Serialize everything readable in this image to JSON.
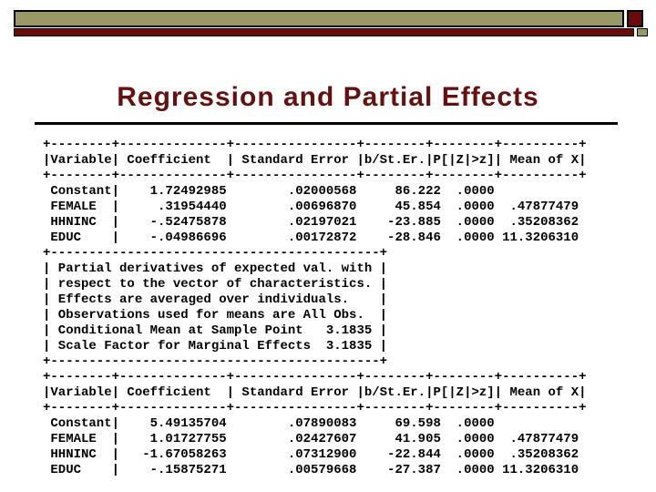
{
  "slide": {
    "title": "Regression and Partial Effects"
  },
  "colors": {
    "banner_tan": "#999966",
    "banner_maroon": "#6b0a0a",
    "title_text": "#641110",
    "body_text": "#000000",
    "background": "#ffffff"
  },
  "tables": [
    {
      "columns": [
        "Variable",
        "Coefficient",
        "Standard Error",
        "b/St.Er.",
        "P[|Z|>z]",
        "Mean of X"
      ],
      "rows": [
        [
          "Constant",
          "1.72492985",
          ".02000568",
          "86.222",
          ".0000",
          ""
        ],
        [
          "FEMALE",
          ".31954440",
          ".00696870",
          "45.854",
          ".0000",
          ".47877479"
        ],
        [
          "HHNINC",
          "-.52475878",
          ".02197021",
          "-23.885",
          ".0000",
          ".35208362"
        ],
        [
          "EDUC",
          "-.04986696",
          ".00172872",
          "-28.846",
          ".0000",
          "11.3206310"
        ]
      ]
    },
    {
      "columns": [
        "Variable",
        "Coefficient",
        "Standard Error",
        "b/St.Er.",
        "P[|Z|>z]",
        "Mean of X"
      ],
      "rows": [
        [
          "Constant",
          "5.49135704",
          ".07890083",
          "69.598",
          ".0000",
          ""
        ],
        [
          "FEMALE",
          "1.01727755",
          ".02427607",
          "41.905",
          ".0000",
          ".47877479"
        ],
        [
          "HHNINC",
          "-1.67058263",
          ".07312900",
          "-22.844",
          ".0000",
          ".35208362"
        ],
        [
          "EDUC",
          "-.15875271",
          ".00579668",
          "-27.387",
          ".0000",
          "11.3206310"
        ]
      ]
    }
  ],
  "notes": [
    "Partial derivatives of expected val. with",
    "respect to the vector of characteristics.",
    "Effects are averaged over individuals.",
    "Observations used for means are All Obs.",
    "Conditional Mean at Sample Point   3.1835",
    "Scale Factor for Marginal Effects  3.1835"
  ],
  "console": {
    "lines": [
      "+--------+--------------+----------------+--------+--------+----------+",
      "|Variable| Coefficient  | Standard Error |b/St.Er.|P[|Z|>z]| Mean of X|",
      "+--------+--------------+----------------+--------+--------+----------+",
      " Constant|    1.72492985        .02000568     86.222  .0000",
      " FEMALE  |     .31954440        .00696870     45.854  .0000  .47877479",
      " HHNINC  |    -.52475878        .02197021    -23.885  .0000  .35208362",
      " EDUC    |    -.04986696        .00172872    -28.846  .0000 11.3206310",
      "+-------------------------------------------+",
      "| Partial derivatives of expected val. with |",
      "| respect to the vector of characteristics. |",
      "| Effects are averaged over individuals.    |",
      "| Observations used for means are All Obs.  |",
      "| Conditional Mean at Sample Point   3.1835 |",
      "| Scale Factor for Marginal Effects  3.1835 |",
      "+-------------------------------------------+",
      "+--------+--------------+----------------+--------+--------+----------+",
      "|Variable| Coefficient  | Standard Error |b/St.Er.|P[|Z|>z]| Mean of X|",
      "+--------+--------------+----------------+--------+--------+----------+",
      " Constant|    5.49135704        .07890083     69.598  .0000",
      " FEMALE  |    1.01727755        .02427607     41.905  .0000  .47877479",
      " HHNINC  |   -1.67058263        .07312900    -22.844  .0000  .35208362",
      " EDUC    |    -.15875271        .00579668    -27.387  .0000 11.3206310"
    ]
  }
}
